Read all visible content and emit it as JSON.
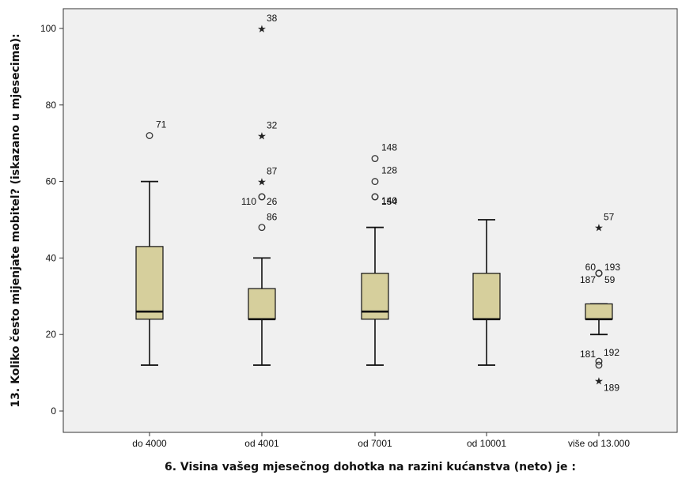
{
  "chart_data": {
    "type": "boxplot",
    "xlabel": "6. Visina vašeg mjesečnog dohotka na razini kućanstva (neto) je :",
    "ylabel": "13. Koliko često mijenjate mobitel? (iskazano u mjesecima):",
    "ylim": [
      -5,
      106
    ],
    "yticks": [
      0,
      20,
      40,
      60,
      80,
      100
    ],
    "grid": false,
    "background": "#f0f0f0",
    "box_color": "#d6cf9c",
    "categories": [
      "do 4000",
      "od 4001",
      "od 7001",
      "od 10001",
      "više od 13.000"
    ],
    "boxes": [
      {
        "category": "do 4000",
        "whisker_low": 12,
        "q1": 24,
        "median": 26,
        "q3": 43,
        "whisker_high": 60
      },
      {
        "category": "od 4001",
        "whisker_low": 12,
        "q1": 24,
        "median": 24,
        "q3": 32,
        "whisker_high": 40
      },
      {
        "category": "od 7001",
        "whisker_low": 12,
        "q1": 24,
        "median": 26,
        "q3": 36,
        "whisker_high": 48
      },
      {
        "category": "od 10001",
        "whisker_low": 12,
        "q1": 24,
        "median": 24,
        "q3": 36,
        "whisker_high": 50
      },
      {
        "category": "više od 13.000",
        "whisker_low": 20,
        "q1": 24,
        "median": 24,
        "q3": 28,
        "whisker_high": 28
      }
    ],
    "outliers": [
      {
        "category": "do 4000",
        "value": 72,
        "marker": "circle",
        "label": "71"
      },
      {
        "category": "od 4001",
        "value": 100,
        "marker": "star",
        "label": "38"
      },
      {
        "category": "od 4001",
        "value": 72,
        "marker": "star",
        "label": "32"
      },
      {
        "category": "od 4001",
        "value": 60,
        "marker": "star",
        "label": "87"
      },
      {
        "category": "od 4001",
        "value": 56,
        "marker": "circle",
        "label": "110"
      },
      {
        "category": "od 4001",
        "value": 56,
        "marker": "circle",
        "label": "26"
      },
      {
        "category": "od 4001",
        "value": 48,
        "marker": "circle",
        "label": "86"
      },
      {
        "category": "od 7001",
        "value": 66,
        "marker": "circle",
        "label": "148"
      },
      {
        "category": "od 7001",
        "value": 60,
        "marker": "circle",
        "label": "128"
      },
      {
        "category": "od 7001",
        "value": 56,
        "marker": "circle",
        "label": "154"
      },
      {
        "category": "od 7001",
        "value": 56,
        "marker": "circle",
        "label": "140"
      },
      {
        "category": "više od 13.000",
        "value": 48,
        "marker": "star",
        "label": "57"
      },
      {
        "category": "više od 13.000",
        "value": 36,
        "marker": "circle",
        "label": "60"
      },
      {
        "category": "više od 13.000",
        "value": 36,
        "marker": "circle",
        "label": "193"
      },
      {
        "category": "više od 13.000",
        "value": 36,
        "marker": "circle",
        "label": "187"
      },
      {
        "category": "više od 13.000",
        "value": 36,
        "marker": "circle",
        "label": "59"
      },
      {
        "category": "više od 13.000",
        "value": 13,
        "marker": "circle",
        "label": "181"
      },
      {
        "category": "više od 13.000",
        "value": 12,
        "marker": "circle",
        "label": "192"
      },
      {
        "category": "više od 13.000",
        "value": 8,
        "marker": "star",
        "label": "189"
      }
    ]
  }
}
